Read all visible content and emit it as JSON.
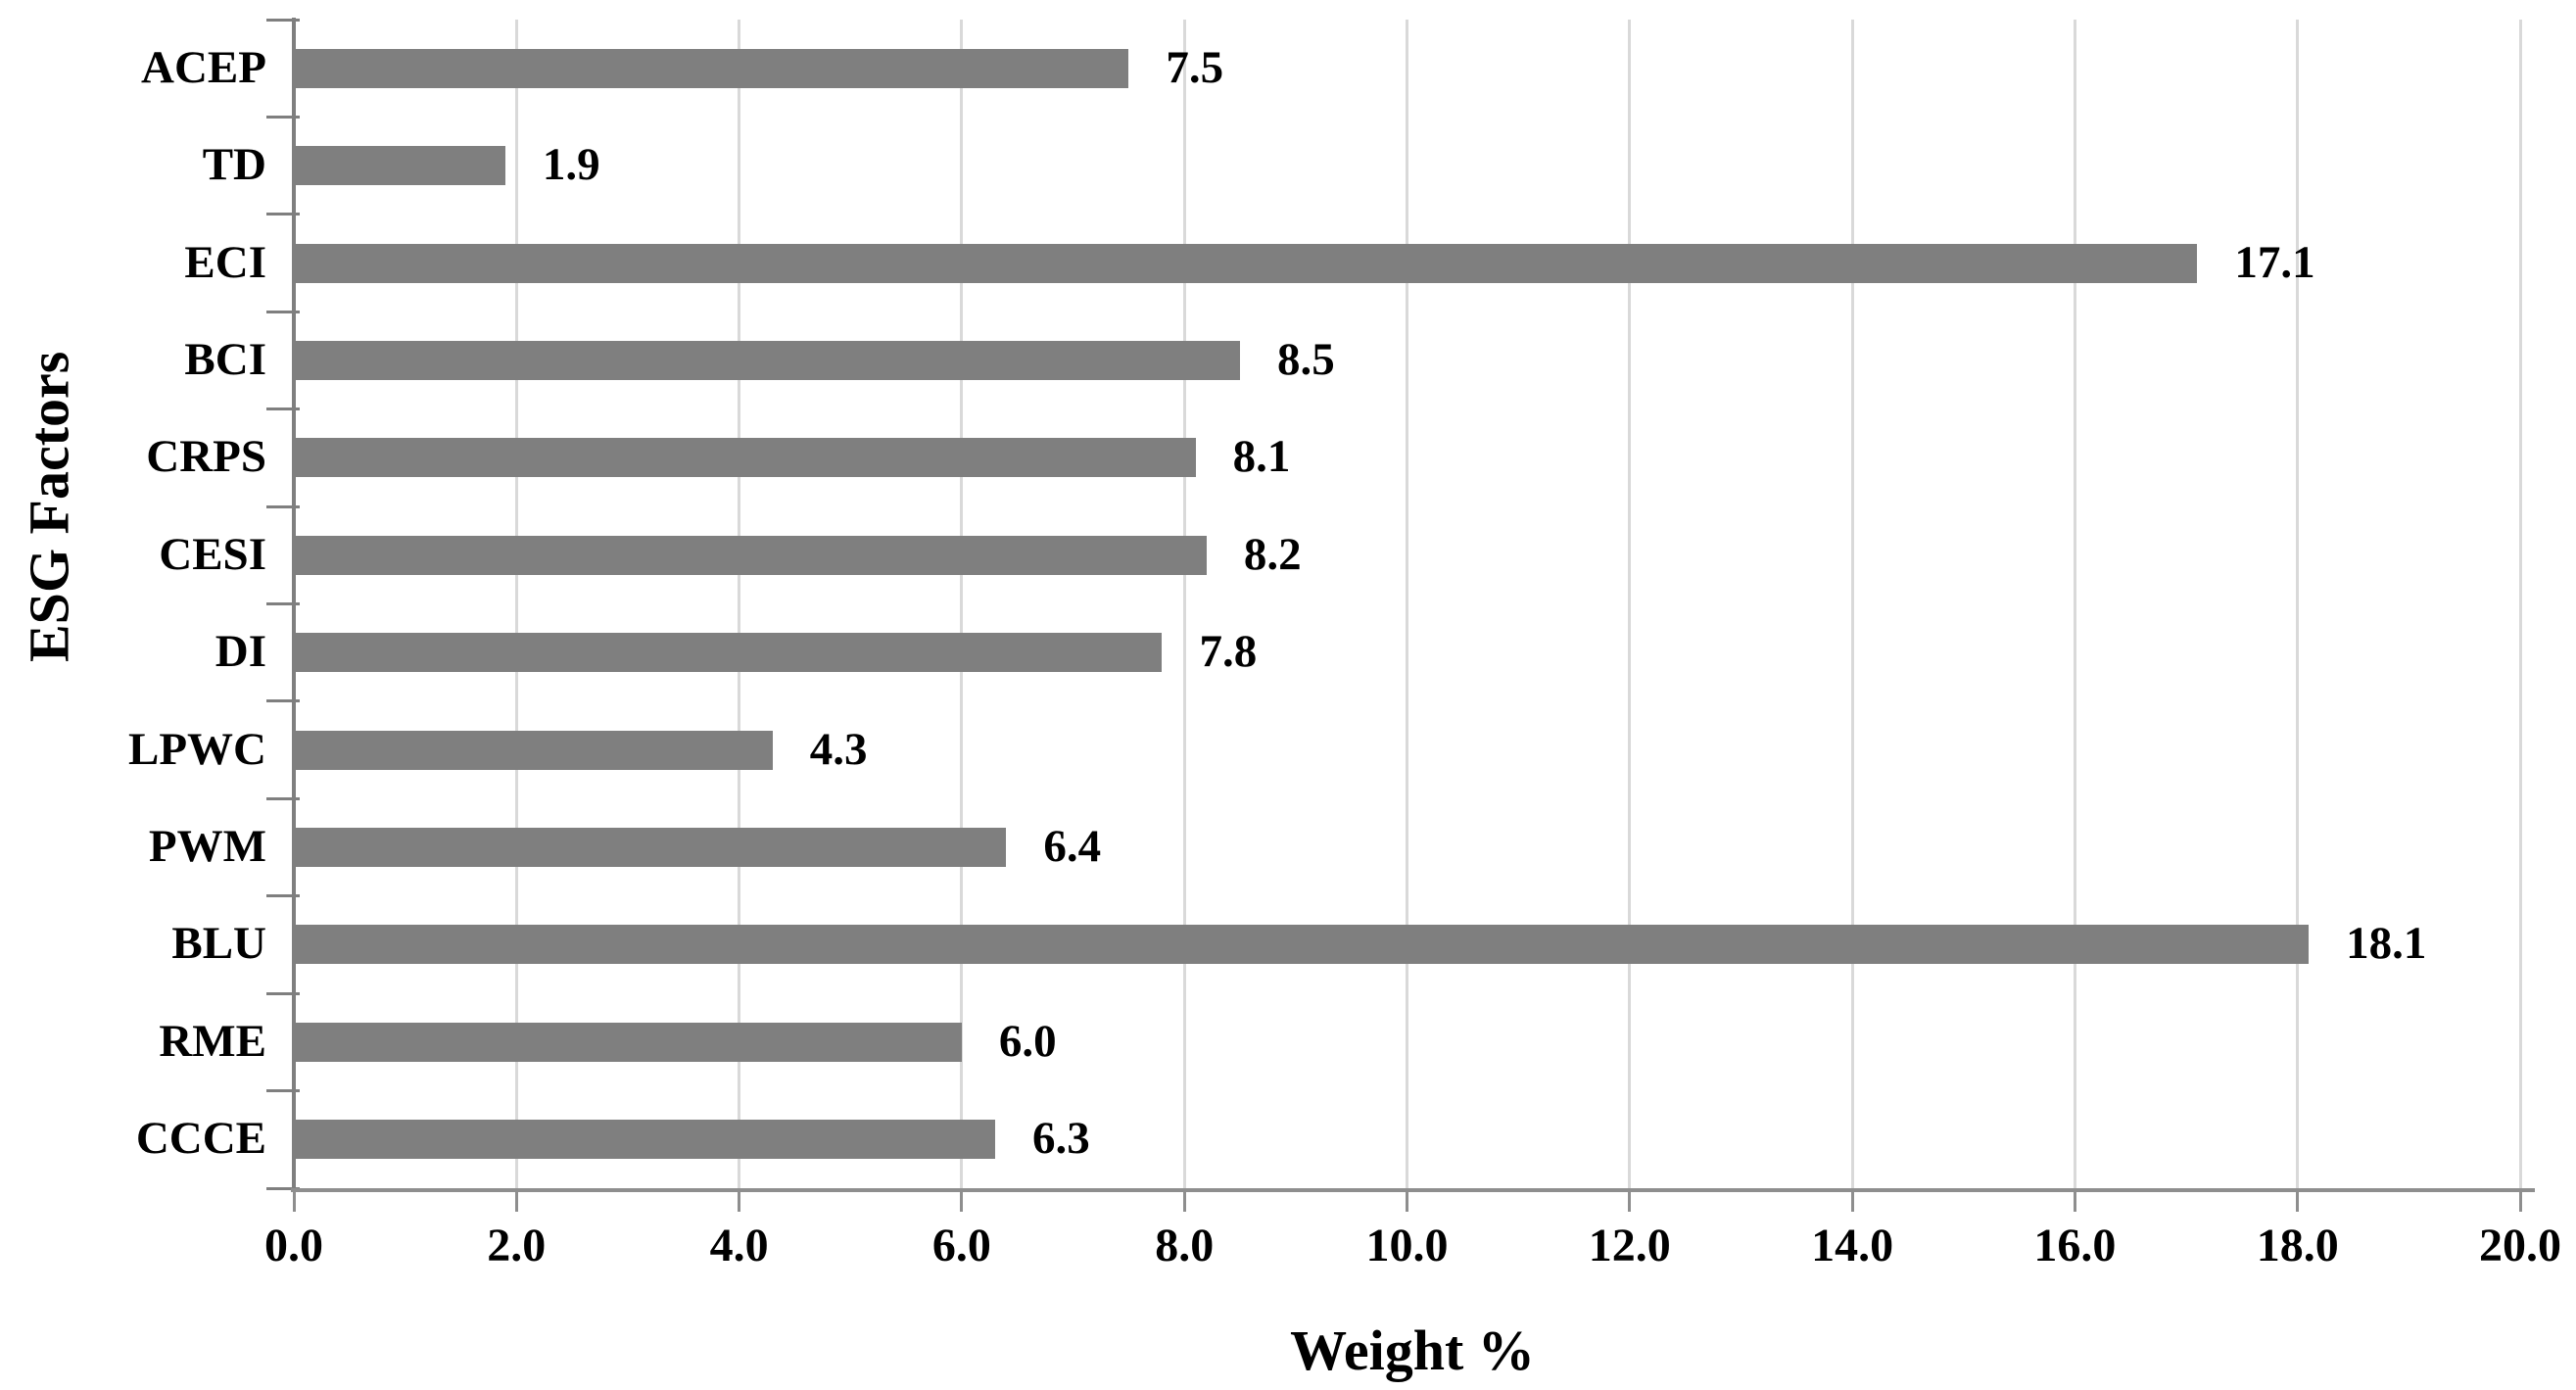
{
  "chart_data": {
    "type": "bar",
    "orientation": "horizontal",
    "title": "",
    "xlabel": "Weight %",
    "ylabel": "ESG Factors",
    "categories": [
      "ACEP",
      "TD",
      "ECI",
      "BCI",
      "CRPS",
      "CESI",
      "DI",
      "LPWC",
      "PWM",
      "BLU",
      "RME",
      "CCCE"
    ],
    "values": [
      7.5,
      1.9,
      17.1,
      8.5,
      8.1,
      8.2,
      7.8,
      4.3,
      6.4,
      18.1,
      6.0,
      6.3
    ],
    "value_labels": [
      "7.5",
      "1.9",
      "17.1",
      "8.5",
      "8.1",
      "8.2",
      "7.8",
      "4.3",
      "6.4",
      "18.1",
      "6.0",
      "6.3"
    ],
    "xlim": [
      0.0,
      20.0
    ],
    "x_tick_step": 2.0,
    "x_ticks": [
      0,
      2,
      4,
      6,
      8,
      10,
      12,
      14,
      16,
      18,
      20
    ],
    "x_tick_labels": [
      "0.0",
      "2.0",
      "4.0",
      "6.0",
      "8.0",
      "10.0",
      "12.0",
      "14.0",
      "16.0",
      "18.0",
      "20.0"
    ],
    "grid": "vertical-gridlines-on",
    "legend": "none",
    "colors": {
      "bar": "#7f7f7f",
      "gridline": "#d9d9d9",
      "y_axis_line": "#7f7f7f",
      "x_axis_line": "#8e8e8e",
      "text": "#000000",
      "background": "#ffffff"
    }
  }
}
